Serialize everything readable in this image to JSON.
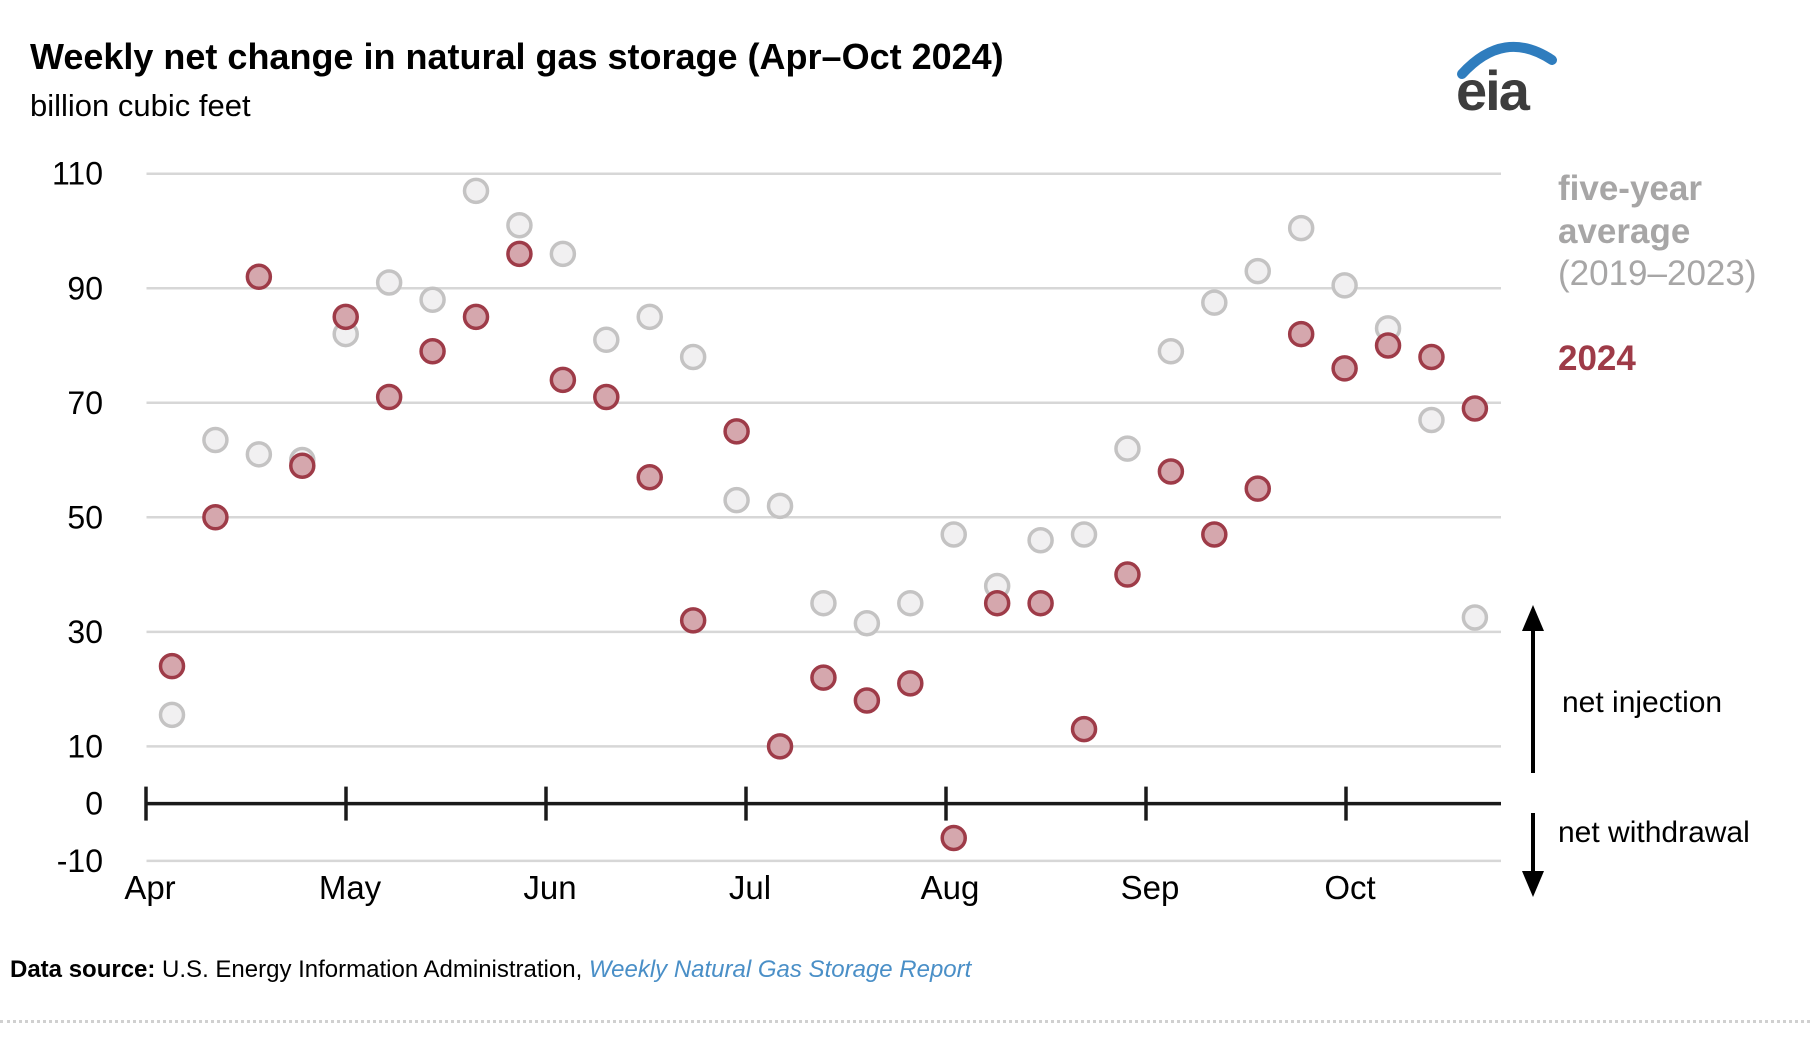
{
  "header": {
    "logo_text": "eia",
    "logo_accent_color": "#2f7dbe"
  },
  "legend": {
    "five_year_label": "five-year average",
    "five_year_years": "(2019–2023)",
    "year_2024": "2024",
    "five_year_color": "#a7a6a6",
    "year_2024_color": "#9e3b48"
  },
  "footer": {
    "source_label": "Data source:",
    "source_text": " U.S. Energy Information Administration, ",
    "source_link": "Weekly Natural Gas Storage Report"
  },
  "chart_data": {
    "type": "scatter",
    "title": "Weekly net change in natural gas storage (Apr–Oct 2024)",
    "ylabel": "billion cubic feet",
    "xlabel": "",
    "x_unit": "week (weekly observations, Apr–Oct 2024)",
    "n_points_per_series": 31,
    "month_tick_labels": [
      "Apr",
      "May",
      "Jun",
      "Jul",
      "Aug",
      "Sep",
      "Oct"
    ],
    "y_ticks": [
      110,
      90,
      70,
      50,
      30,
      10,
      0,
      -10
    ],
    "ylim": [
      -17,
      114
    ],
    "grid": "horizontal gridlines at labeled y ticks",
    "legend_position": "right",
    "series": [
      {
        "name": "five-year average (2019–2023)",
        "marker": "circle",
        "stroke": "#c4c3c3",
        "fill": "#f1f0f1",
        "values": [
          15.5,
          63.5,
          61,
          60,
          82,
          91,
          88,
          107,
          101,
          96,
          81,
          85,
          78,
          53,
          52,
          35,
          31.5,
          35,
          47,
          38,
          46,
          47,
          62,
          79,
          87.5,
          93,
          100.5,
          90.5,
          83,
          67,
          32.5
        ]
      },
      {
        "name": "2024",
        "marker": "circle",
        "stroke": "#9e3b48",
        "fill": "#d5a7ad",
        "values": [
          24,
          50,
          92,
          59,
          85,
          71,
          79,
          85,
          96,
          74,
          71,
          57,
          32,
          65,
          10,
          22,
          18,
          21,
          -6,
          35,
          35,
          13,
          40,
          58,
          47,
          55,
          82,
          76,
          80,
          78,
          69
        ]
      }
    ],
    "annotations": [
      {
        "label": "net injection",
        "region": "values above 0"
      },
      {
        "label": "net withdrawal",
        "region": "values below 0"
      }
    ],
    "axis_color": "#1a1a1a",
    "gridline_color": "#d7d7d7"
  }
}
